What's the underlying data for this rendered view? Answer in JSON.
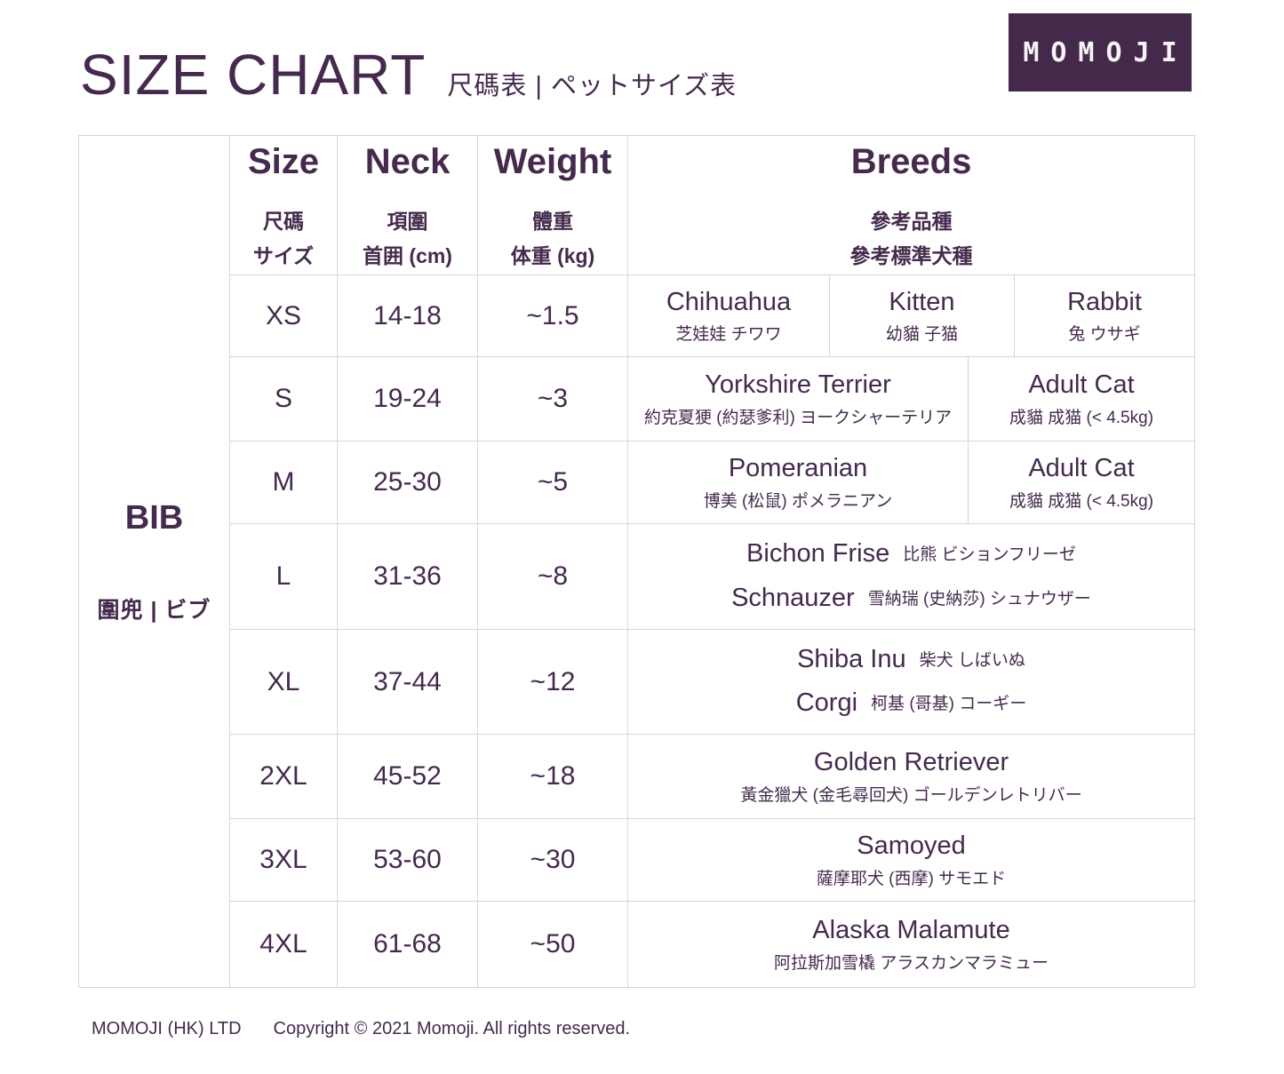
{
  "header": {
    "title": "SIZE CHART",
    "subtitle": "尺碼表 | ペットサイズ表",
    "logo_text": "MOMOJI"
  },
  "table": {
    "product": {
      "name": "BIB",
      "localized": "圍兜 | ビブ"
    },
    "headers": {
      "size": {
        "en": "Size",
        "zh": "尺碼",
        "line3": "サイズ"
      },
      "neck": {
        "en": "Neck",
        "zh": "項圍",
        "line3": "首囲 (cm)"
      },
      "weight": {
        "en": "Weight",
        "zh": "體重",
        "line3": "体重 (kg)"
      },
      "breeds": {
        "en": "Breeds",
        "zh": "參考品種",
        "line3": "參考標準犬種"
      }
    },
    "rows": [
      {
        "size": "XS",
        "neck": "14-18",
        "weight": "~1.5",
        "breeds": [
          {
            "en": "Chihuahua",
            "local": "芝娃娃 チワワ"
          },
          {
            "en": "Kitten",
            "local": "幼貓 子猫"
          },
          {
            "en": "Rabbit",
            "local": "兔 ウサギ"
          }
        ]
      },
      {
        "size": "S",
        "neck": "19-24",
        "weight": "~3",
        "breeds": [
          {
            "en": "Yorkshire Terrier",
            "local": "約克夏㹴 (約瑟爹利) ヨークシャーテリア"
          },
          {
            "en": "Adult Cat",
            "local": "成貓 成猫 (< 4.5kg)"
          }
        ]
      },
      {
        "size": "M",
        "neck": "25-30",
        "weight": "~5",
        "breeds": [
          {
            "en": "Pomeranian",
            "local": "博美 (松鼠) ポメラニアン"
          },
          {
            "en": "Adult Cat",
            "local": "成貓 成猫 (< 4.5kg)"
          }
        ]
      },
      {
        "size": "L",
        "neck": "31-36",
        "weight": "~8",
        "breeds": [
          {
            "en": "Bichon Frise",
            "local": "比熊 ビションフリーゼ"
          },
          {
            "en": "Schnauzer",
            "local": "雪納瑞 (史納莎) シュナウザー"
          }
        ]
      },
      {
        "size": "XL",
        "neck": "37-44",
        "weight": "~12",
        "breeds": [
          {
            "en": "Shiba Inu",
            "local": "柴犬 しばいぬ"
          },
          {
            "en": "Corgi",
            "local": "柯基 (哥基) コーギー"
          }
        ]
      },
      {
        "size": "2XL",
        "neck": "45-52",
        "weight": "~18",
        "breeds": [
          {
            "en": "Golden Retriever",
            "local": "黃金獵犬 (金毛尋回犬) ゴールデンレトリバー"
          }
        ]
      },
      {
        "size": "3XL",
        "neck": "53-60",
        "weight": "~30",
        "breeds": [
          {
            "en": "Samoyed",
            "local": "薩摩耶犬 (西摩) サモエド"
          }
        ]
      },
      {
        "size": "4XL",
        "neck": "61-68",
        "weight": "~50",
        "breeds": [
          {
            "en": "Alaska Malamute",
            "local": "阿拉斯加雪橇 アラスカンマラミュー"
          }
        ]
      }
    ]
  },
  "footer": {
    "company": "MOMOJI (HK) LTD",
    "copyright": "Copyright © 2021 Momoji. All rights reserved."
  }
}
